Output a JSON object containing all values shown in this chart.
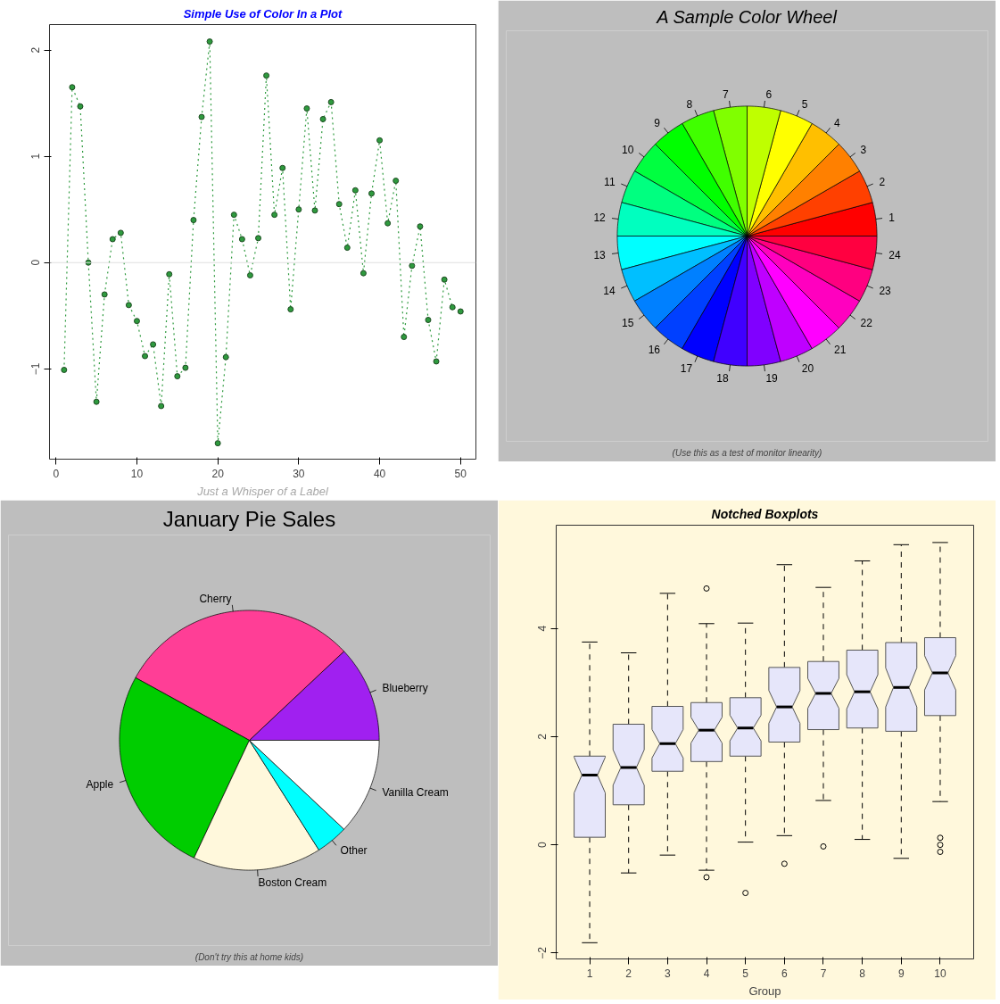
{
  "chart_data": [
    {
      "type": "line",
      "title": "Simple Use of Color In a Plot",
      "xlabel": "Just a Whisper of a Label",
      "x": [
        1,
        2,
        3,
        4,
        5,
        6,
        7,
        8,
        9,
        10,
        11,
        12,
        13,
        14,
        15,
        16,
        17,
        18,
        19,
        20,
        21,
        22,
        23,
        24,
        25,
        26,
        27,
        28,
        29,
        30,
        31,
        32,
        33,
        34,
        35,
        36,
        37,
        38,
        39,
        40,
        41,
        42,
        43,
        44,
        45,
        46,
        47,
        48,
        49,
        50
      ],
      "series": [
        {
          "color": "#2e9a3e",
          "values": [
            -1.01,
            1.65,
            1.47,
            0,
            -1.31,
            -0.3,
            0.22,
            0.28,
            -0.4,
            -0.55,
            -0.88,
            -0.77,
            -1.35,
            -0.11,
            -1.07,
            -0.99,
            0.4,
            1.37,
            2.08,
            -1.7,
            -0.89,
            0.45,
            0.22,
            -0.12,
            0.23,
            1.76,
            0.45,
            0.89,
            -0.44,
            0.5,
            1.45,
            0.49,
            1.35,
            1.51,
            0.55,
            0.14,
            0.68,
            -0.1,
            0.65,
            1.15,
            0.37,
            0.77,
            -0.7,
            -0.03,
            0.34,
            -0.54,
            -0.93,
            -0.16,
            -0.42,
            -0.46
          ]
        }
      ],
      "xlim": [
        -0.8,
        51.9
      ],
      "ylim": [
        -1.85,
        2.24
      ],
      "xticks": [
        0,
        10,
        20,
        30,
        40,
        50
      ],
      "yticks": [
        -1,
        0,
        1,
        2
      ],
      "ref_lines": [
        {
          "axis": "y",
          "value": 0,
          "color": "#e0e0e0"
        }
      ],
      "marker": "circle",
      "line_style": "dotted"
    },
    {
      "type": "pie",
      "title": "A Sample Color Wheel",
      "categories": [
        "1",
        "2",
        "3",
        "4",
        "5",
        "6",
        "7",
        "8",
        "9",
        "10",
        "11",
        "12",
        "13",
        "14",
        "15",
        "16",
        "17",
        "18",
        "19",
        "20",
        "21",
        "22",
        "23",
        "24"
      ],
      "values": [
        4.1667,
        4.1667,
        4.1667,
        4.1667,
        4.1667,
        4.1667,
        4.1667,
        4.1667,
        4.1667,
        4.1667,
        4.1667,
        4.1667,
        4.1667,
        4.1667,
        4.1667,
        4.1667,
        4.1667,
        4.1667,
        4.1667,
        4.1667,
        4.1667,
        4.1667,
        4.1667,
        4.1667
      ],
      "colors": [
        "#ff0000",
        "#ff4000",
        "#ff8000",
        "#ffbf00",
        "#ffff00",
        "#bfff00",
        "#80ff00",
        "#40ff00",
        "#00ff00",
        "#00ff40",
        "#00ff80",
        "#00ffbf",
        "#00ffff",
        "#00bfff",
        "#0080ff",
        "#0040ff",
        "#0000ff",
        "#4000ff",
        "#8000ff",
        "#bf00ff",
        "#ff00ff",
        "#ff00bf",
        "#ff0080",
        "#ff0040"
      ],
      "annotations": [
        "(Use this as a test of monitor linearity)"
      ]
    },
    {
      "type": "pie",
      "title": "January Pie Sales",
      "categories": [
        "Blueberry",
        "Cherry",
        "Apple",
        "Boston Cream",
        "Other",
        "Vanilla Cream"
      ],
      "values": [
        12,
        30,
        26,
        16,
        4,
        12
      ],
      "colors": [
        "#a020f0",
        "#ff3e96",
        "#00cd00",
        "#fff8dc",
        "#00ffff",
        "#ffffff"
      ],
      "annotations": [
        "(Don't try this at home kids)"
      ]
    },
    {
      "type": "box",
      "title": "Notched Boxplots",
      "xlabel": "Group",
      "color": "#e6e6fa",
      "categories": [
        "1",
        "2",
        "3",
        "4",
        "5",
        "6",
        "7",
        "8",
        "9",
        "10"
      ],
      "boxes": [
        {
          "low": -1.81,
          "q1": 0.14,
          "median": 1.29,
          "q3": 1.64,
          "high": 3.75
        },
        {
          "low": -0.52,
          "q1": 0.74,
          "median": 1.43,
          "q3": 2.23,
          "high": 3.55
        },
        {
          "low": -0.19,
          "q1": 1.36,
          "median": 1.87,
          "q3": 2.56,
          "high": 4.65
        },
        {
          "low": -0.47,
          "q1": 1.54,
          "median": 2.12,
          "q3": 2.63,
          "high": 4.09,
          "outliers": [
            4.74,
            -0.6
          ]
        },
        {
          "low": 0.05,
          "q1": 1.64,
          "median": 2.16,
          "q3": 2.72,
          "high": 4.1,
          "outliers": [
            -0.89
          ]
        },
        {
          "low": 0.17,
          "q1": 1.9,
          "median": 2.55,
          "q3": 3.28,
          "high": 5.18,
          "outliers": [
            -0.35
          ]
        },
        {
          "low": 0.82,
          "q1": 2.13,
          "median": 2.8,
          "q3": 3.39,
          "high": 4.76,
          "outliers": [
            -0.03
          ]
        },
        {
          "low": 0.1,
          "q1": 2.16,
          "median": 2.83,
          "q3": 3.6,
          "high": 5.25
        },
        {
          "low": -0.25,
          "q1": 2.1,
          "median": 2.91,
          "q3": 3.74,
          "high": 5.55
        },
        {
          "low": 0.8,
          "q1": 2.39,
          "median": 3.18,
          "q3": 3.83,
          "high": 5.59,
          "outliers": [
            0.13,
            0.0,
            -0.13
          ]
        }
      ],
      "ylim": [
        -2.11,
        5.91
      ],
      "yticks": [
        -2,
        0,
        2,
        4
      ]
    }
  ]
}
